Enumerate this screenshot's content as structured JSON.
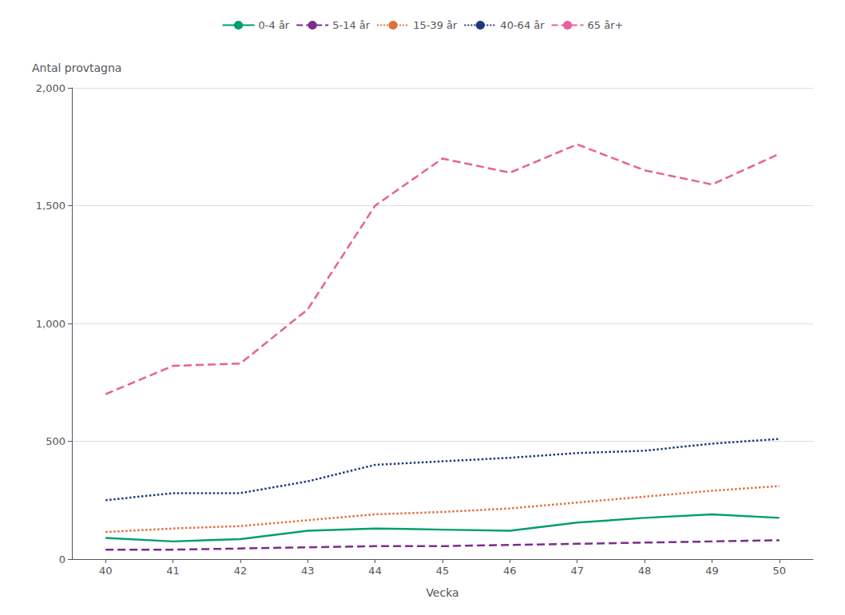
{
  "chart_data": {
    "type": "line",
    "xlabel": "Vecka",
    "ylabel": "Antal provtagna",
    "x": [
      40,
      41,
      42,
      43,
      44,
      45,
      46,
      47,
      48,
      49,
      50
    ],
    "series": [
      {
        "name": "0-4 år",
        "color": "#009E73",
        "line_style": "solid",
        "values": [
          90,
          75,
          85,
          120,
          130,
          125,
          120,
          155,
          175,
          190,
          175
        ]
      },
      {
        "name": "5-14 år",
        "color": "#7B2D8B",
        "line_style": "dashed",
        "values": [
          40,
          40,
          45,
          50,
          55,
          55,
          60,
          65,
          70,
          75,
          80
        ]
      },
      {
        "name": "15-39 år",
        "color": "#E07040",
        "line_style": "dotted",
        "values": [
          115,
          130,
          140,
          165,
          190,
          200,
          215,
          240,
          265,
          290,
          310
        ]
      },
      {
        "name": "40-64 år",
        "color": "#1E3A7B",
        "line_style": "dotted",
        "values": [
          250,
          280,
          280,
          330,
          400,
          415,
          430,
          450,
          460,
          490,
          510
        ]
      },
      {
        "name": "65 år+",
        "color": "#E8609A",
        "line_style": "dashed",
        "values": [
          700,
          820,
          830,
          1060,
          1500,
          1700,
          1640,
          1760,
          1650,
          1590,
          1720
        ]
      }
    ],
    "xlim": [
      39.5,
      50.5
    ],
    "xticks": [
      40,
      41,
      42,
      43,
      44,
      45,
      46,
      47,
      48,
      49,
      50
    ],
    "ylim": [
      0,
      2000
    ],
    "yticks": [
      0,
      500,
      1000,
      1500,
      2000
    ],
    "grid": true,
    "legend": "top"
  }
}
